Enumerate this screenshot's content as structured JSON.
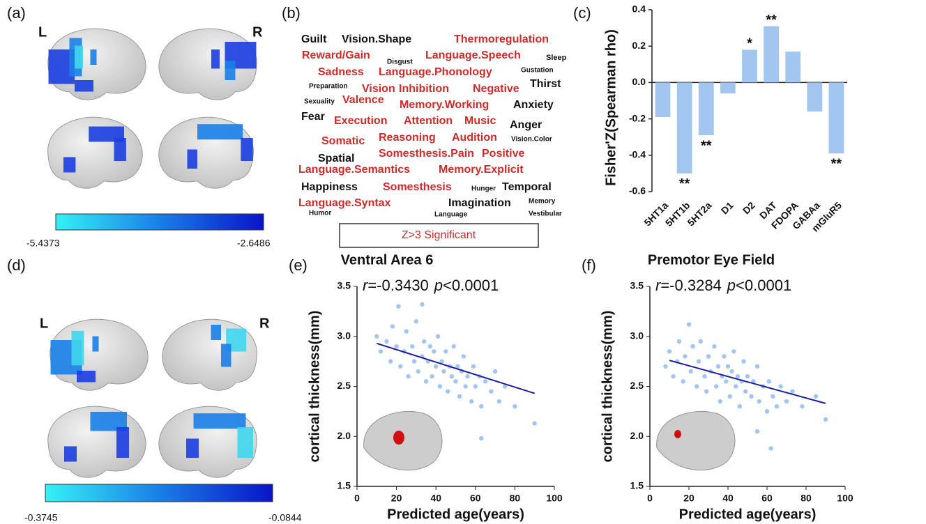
{
  "panels": [
    "(a)",
    "(b)",
    "(c)",
    "(d)",
    "(e)",
    "(f)"
  ],
  "hemisphere_labels": {
    "left": "L",
    "right": "R"
  },
  "colorbars": [
    {
      "min_label": "-5.4373",
      "max_label": "-2.6486"
    },
    {
      "min_label": "-0.3745",
      "max_label": "-0.0844"
    }
  ],
  "word_cloud": {
    "words": [
      {
        "text": "Guilt",
        "color": "#111111"
      },
      {
        "text": "Vision.Shape",
        "color": "#111111"
      },
      {
        "text": "Thermoregulation",
        "color": "#d12a2a"
      },
      {
        "text": "Reward/Gain",
        "color": "#d12a2a"
      },
      {
        "text": "Disgust",
        "color": "#111111"
      },
      {
        "text": "Language.Speech",
        "color": "#d12a2a"
      },
      {
        "text": "Sleep",
        "color": "#111111"
      },
      {
        "text": "Sadness",
        "color": "#d12a2a"
      },
      {
        "text": "Language.Phonology",
        "color": "#d12a2a"
      },
      {
        "text": "Gustation",
        "color": "#111111"
      },
      {
        "text": "Preparation",
        "color": "#111111"
      },
      {
        "text": "Vision",
        "color": "#d12a2a"
      },
      {
        "text": "Inhibition",
        "color": "#d12a2a"
      },
      {
        "text": "Negative",
        "color": "#d12a2a"
      },
      {
        "text": "Thirst",
        "color": "#111111"
      },
      {
        "text": "Sexuality",
        "color": "#111111"
      },
      {
        "text": "Valence",
        "color": "#d12a2a"
      },
      {
        "text": "Memory.Working",
        "color": "#d12a2a"
      },
      {
        "text": "Anxiety",
        "color": "#111111"
      },
      {
        "text": "Fear",
        "color": "#111111"
      },
      {
        "text": "Execution",
        "color": "#d12a2a"
      },
      {
        "text": "Attention",
        "color": "#d12a2a"
      },
      {
        "text": "Music",
        "color": "#d12a2a"
      },
      {
        "text": "Anger",
        "color": "#111111"
      },
      {
        "text": "Somatic",
        "color": "#d12a2a"
      },
      {
        "text": "Reasoning",
        "color": "#d12a2a"
      },
      {
        "text": "Audition",
        "color": "#d12a2a"
      },
      {
        "text": "Vision.Color",
        "color": "#111111"
      },
      {
        "text": "Spatial",
        "color": "#111111"
      },
      {
        "text": "Somesthesis.Pain",
        "color": "#d12a2a"
      },
      {
        "text": "Positive",
        "color": "#d12a2a"
      },
      {
        "text": "Language.Semantics",
        "color": "#d12a2a"
      },
      {
        "text": "Memory.Explicit",
        "color": "#d12a2a"
      },
      {
        "text": "Happiness",
        "color": "#111111"
      },
      {
        "text": "Somesthesis",
        "color": "#d12a2a"
      },
      {
        "text": "Hunger",
        "color": "#111111"
      },
      {
        "text": "Temporal",
        "color": "#111111"
      },
      {
        "text": "Language.Syntax",
        "color": "#d12a2a"
      },
      {
        "text": "Memory",
        "color": "#111111"
      },
      {
        "text": "Humor",
        "color": "#111111"
      },
      {
        "text": "Language",
        "color": "#111111"
      },
      {
        "text": "Imagination",
        "color": "#111111"
      },
      {
        "text": "Vestibular",
        "color": "#111111"
      }
    ],
    "legend": "Z>3 Significant"
  },
  "chart_data": [
    {
      "type": "bar",
      "ylabel": "Fisher'Z(Spearman rho)",
      "categories": [
        "5HT1a",
        "5HT1b",
        "5HT2a",
        "D1",
        "D2",
        "DAT",
        "FDOPA",
        "GABAa",
        "mGluR5"
      ],
      "values": [
        -0.19,
        -0.5,
        -0.29,
        -0.06,
        0.18,
        0.31,
        0.17,
        -0.16,
        -0.39
      ],
      "significance": [
        null,
        "**",
        "**",
        null,
        "*",
        "**",
        null,
        null,
        "**"
      ],
      "color": "#a3c6f1",
      "ylim": [
        -0.6,
        0.4
      ],
      "yticks": [
        -0.6,
        -0.4,
        -0.2,
        {
          "value": 0,
          "label": "0.0"
        },
        0.2,
        0.4
      ]
    },
    {
      "type": "scatter",
      "title": "Ventral Area 6",
      "annotation": [
        "r",
        "=-0.3430",
        "p",
        "<0.0001"
      ],
      "xlabel": "Predicted age(years)",
      "ylabel": "cortical thickness(mm)",
      "color": "#a3c6f1",
      "fit_color": "#1a1aa8",
      "x": [
        10,
        12,
        15,
        17,
        18,
        20,
        21,
        22,
        24,
        25,
        26,
        28,
        29,
        30,
        31,
        33,
        34,
        35,
        36,
        37,
        38,
        39,
        40,
        41,
        42,
        43,
        44,
        45,
        46,
        47,
        48,
        49,
        50,
        51,
        52,
        53,
        54,
        55,
        56,
        58,
        59,
        60,
        62,
        63,
        65,
        68,
        70,
        72,
        75,
        80,
        90,
        63,
        33
      ],
      "y": [
        3.0,
        2.85,
        2.95,
        2.75,
        3.1,
        2.9,
        3.3,
        2.7,
        2.85,
        3.05,
        2.6,
        2.9,
        2.75,
        3.15,
        2.65,
        2.8,
        2.95,
        2.55,
        2.75,
        2.9,
        2.6,
        2.85,
        2.7,
        3.0,
        2.5,
        2.75,
        2.65,
        2.85,
        2.45,
        2.7,
        2.6,
        2.9,
        2.55,
        2.7,
        2.4,
        2.65,
        2.8,
        2.5,
        2.6,
        2.35,
        2.7,
        2.5,
        2.6,
        2.3,
        2.55,
        2.45,
        2.65,
        2.35,
        2.5,
        2.3,
        2.13,
        1.98,
        3.32
      ],
      "fit": {
        "x": [
          10,
          90
        ],
        "y": [
          2.93,
          2.43
        ]
      },
      "xlim": [
        0,
        100
      ],
      "xticks": [
        0,
        20,
        40,
        60,
        80,
        100
      ],
      "ylim": [
        1.5,
        3.5
      ],
      "yticks": [
        1.5,
        {
          "value": 2,
          "label": "2.0"
        },
        2.5,
        {
          "value": 3,
          "label": "3.0"
        },
        3.5
      ]
    },
    {
      "type": "scatter",
      "title": "Premotor Eye Field",
      "annotation": [
        "r",
        "=-0.3284",
        "p",
        "<0.0001"
      ],
      "xlabel": "Predicted age(years)",
      "ylabel": "cortical thickness(mm)",
      "color": "#a3c6f1",
      "fit_color": "#1a1aa8",
      "x": [
        8,
        10,
        12,
        14,
        15,
        17,
        18,
        20,
        21,
        22,
        24,
        25,
        26,
        28,
        29,
        30,
        31,
        33,
        34,
        35,
        36,
        37,
        38,
        39,
        40,
        41,
        42,
        43,
        44,
        45,
        46,
        47,
        48,
        49,
        50,
        52,
        53,
        55,
        56,
        58,
        60,
        61,
        63,
        65,
        67,
        70,
        73,
        78,
        85,
        90,
        62,
        55
      ],
      "y": [
        2.7,
        2.85,
        2.6,
        2.75,
        2.95,
        2.55,
        2.8,
        3.12,
        2.65,
        2.9,
        2.5,
        2.75,
        2.95,
        2.6,
        2.45,
        2.8,
        2.65,
        2.9,
        2.5,
        2.7,
        2.35,
        2.6,
        2.8,
        2.55,
        2.7,
        2.4,
        2.65,
        2.85,
        2.5,
        2.6,
        2.3,
        2.55,
        2.75,
        2.45,
        2.6,
        2.4,
        2.55,
        2.7,
        2.35,
        2.5,
        2.25,
        2.55,
        2.4,
        2.3,
        2.5,
        2.35,
        2.45,
        2.3,
        2.4,
        2.17,
        1.88,
        2.05
      ],
      "fit": {
        "x": [
          10,
          90
        ],
        "y": [
          2.76,
          2.33
        ]
      },
      "xlim": [
        0,
        100
      ],
      "xticks": [
        0,
        20,
        40,
        60,
        80,
        100
      ],
      "ylim": [
        1.5,
        3.5
      ],
      "yticks": [
        1.5,
        {
          "value": 2,
          "label": "2.0"
        },
        2.5,
        {
          "value": 3,
          "label": "3.0"
        },
        3.5
      ]
    }
  ]
}
